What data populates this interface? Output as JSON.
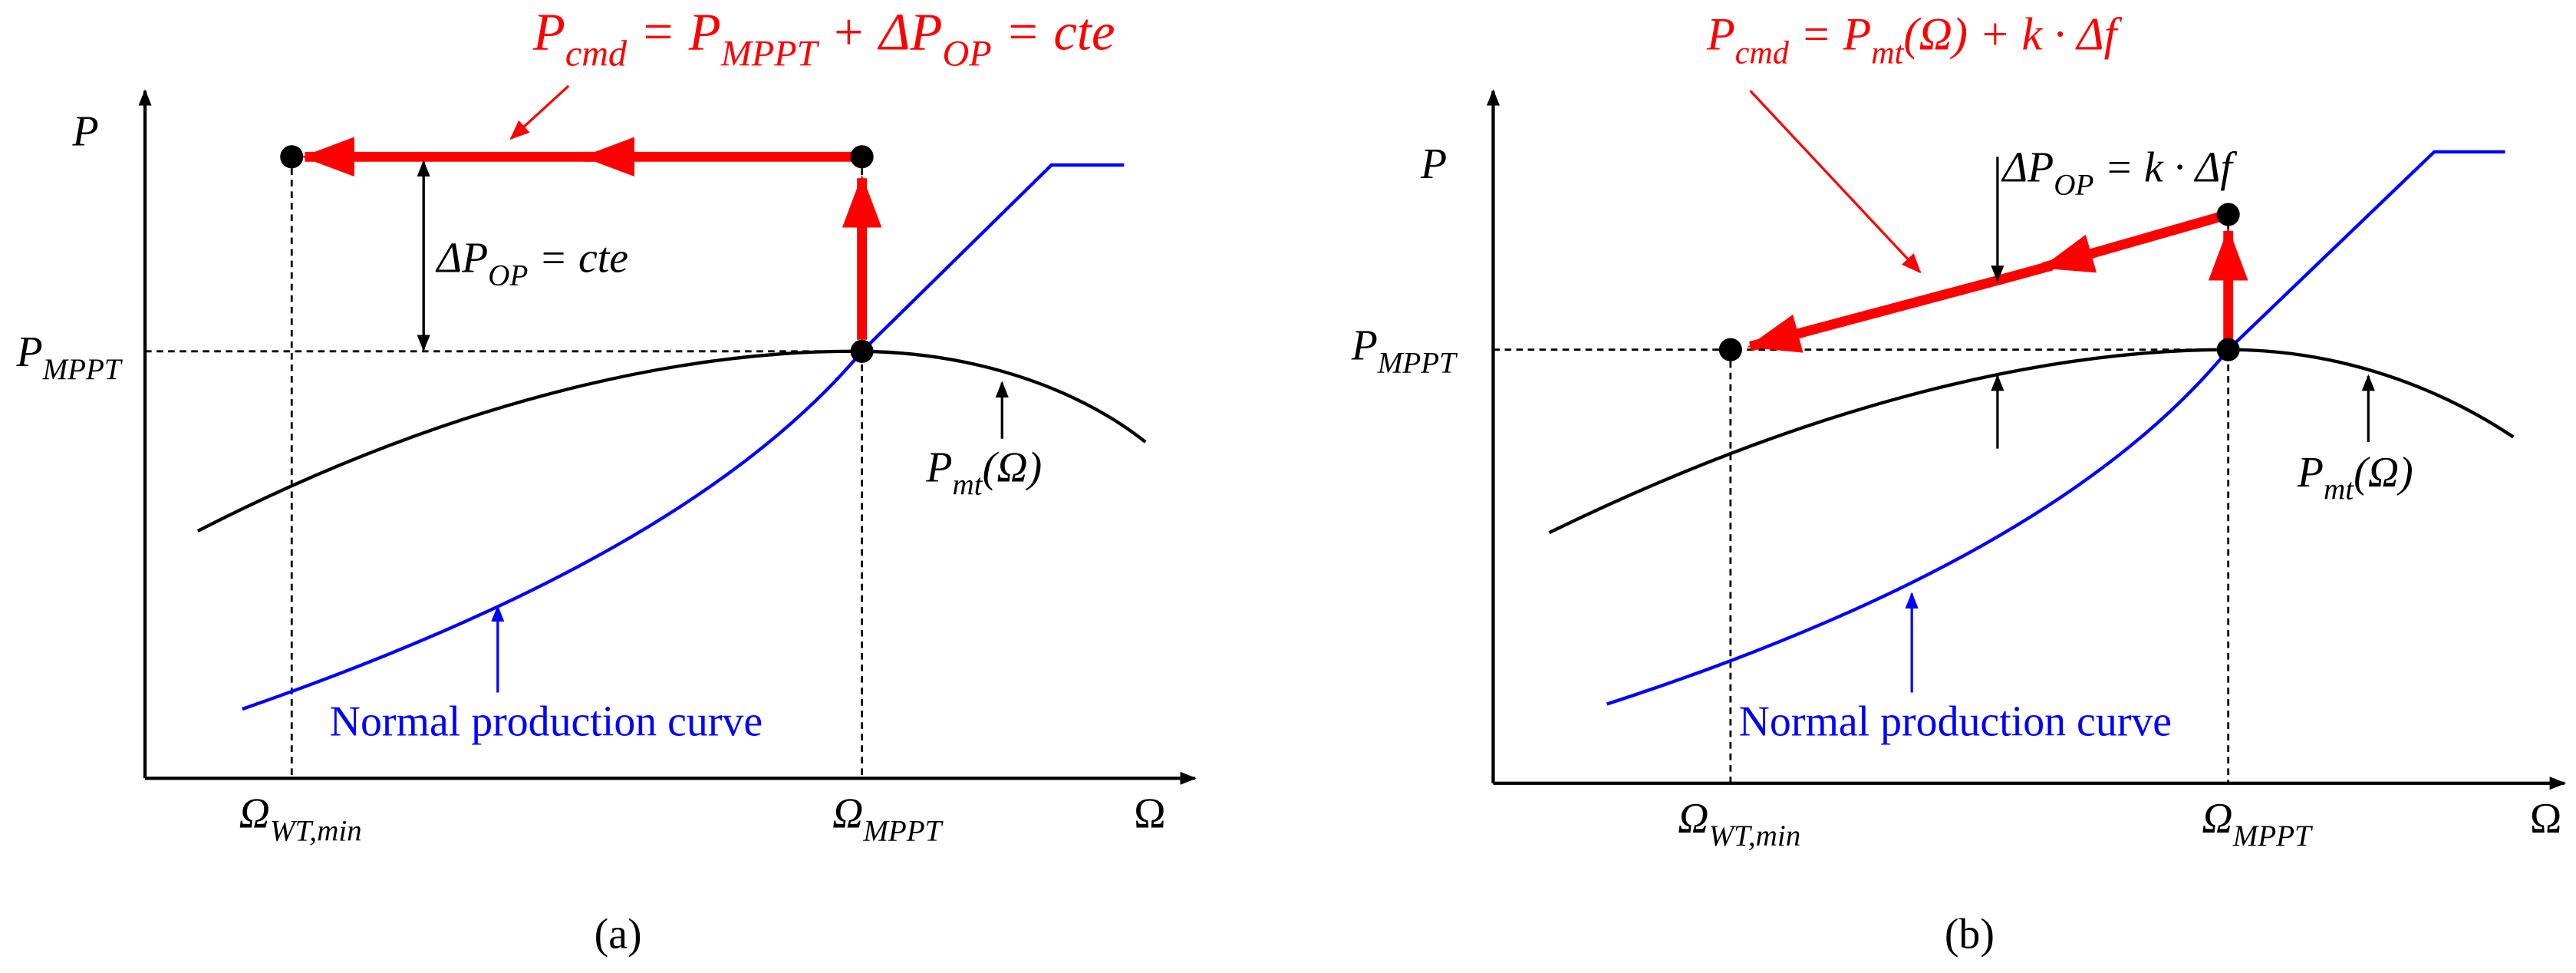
{
  "panels": [
    {
      "caption": "(a)",
      "y_axis": "P",
      "x_axis": "Ω",
      "equation": [
        "P",
        "cmd",
        " = P",
        "MPPT",
        " + ΔP",
        "OP",
        " = cte"
      ],
      "delta_label": [
        "ΔP",
        "OP",
        " = cte"
      ],
      "p_mppt": [
        "P",
        "MPPT"
      ],
      "curve_label": [
        "P",
        "mt",
        "(Ω)"
      ],
      "normal_label": "Normal production curve",
      "omega_min": [
        "Ω",
        "WT,min"
      ],
      "omega_mppt": [
        "Ω",
        "MPPT"
      ]
    },
    {
      "caption": "(b)",
      "y_axis": "P",
      "x_axis": "Ω",
      "equation": [
        "P",
        "cmd",
        " = P",
        "mt",
        "(Ω) + k · Δf"
      ],
      "delta_label": [
        "ΔP",
        "OP",
        " = k · Δf"
      ],
      "p_mppt": [
        "P",
        "MPPT"
      ],
      "curve_label": [
        "P",
        "mt",
        "(Ω)"
      ],
      "normal_label": "Normal production curve",
      "omega_min": [
        "Ω",
        "WT,min"
      ],
      "omega_mppt": [
        "Ω",
        "MPPT"
      ]
    }
  ]
}
